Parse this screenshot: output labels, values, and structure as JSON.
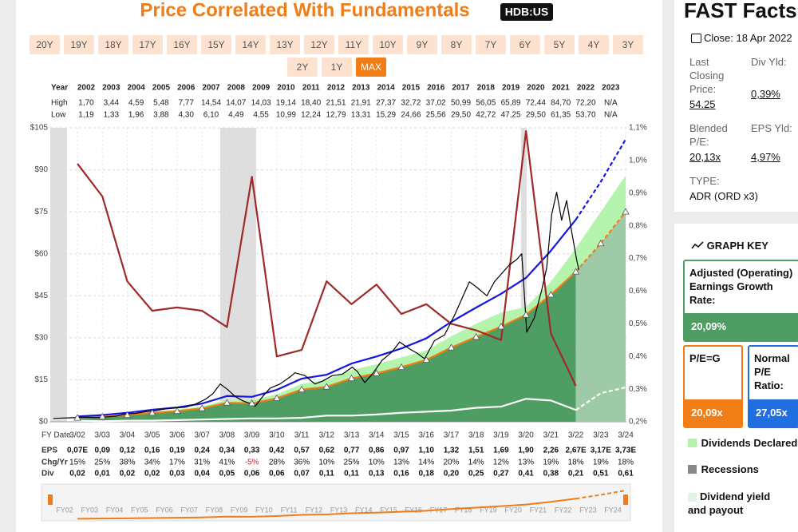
{
  "header": {
    "title": "Price Correlated With Fundamentals",
    "ticker": "HDB:US"
  },
  "periods": [
    "20Y",
    "19Y",
    "18Y",
    "17Y",
    "16Y",
    "15Y",
    "14Y",
    "13Y",
    "12Y",
    "11Y",
    "10Y",
    "9Y",
    "8Y",
    "7Y",
    "6Y",
    "5Y",
    "4Y",
    "3Y",
    "2Y",
    "1Y",
    "MAX"
  ],
  "selected_period": 20,
  "year_table": {
    "labels": [
      "Year",
      "High",
      "Low"
    ],
    "years": [
      "2002",
      "2003",
      "2004",
      "2005",
      "2006",
      "2007",
      "2008",
      "2009",
      "2010",
      "2011",
      "2012",
      "2013",
      "2014",
      "2015",
      "2016",
      "2017",
      "2018",
      "2019",
      "2020",
      "2021",
      "2022",
      "2023"
    ],
    "high": [
      "1,70",
      "3,44",
      "4,59",
      "5,48",
      "7,77",
      "14,54",
      "14,07",
      "14,03",
      "19,14",
      "18,40",
      "21,51",
      "21,91",
      "27,37",
      "32,72",
      "37,02",
      "50,99",
      "56,05",
      "65,89",
      "72,44",
      "84,70",
      "72,20",
      "N/A"
    ],
    "low": [
      "1,19",
      "1,33",
      "1,96",
      "3,88",
      "4,30",
      "6,10",
      "4,49",
      "4,55",
      "10,99",
      "12,24",
      "12,79",
      "13,31",
      "15,29",
      "24,66",
      "25,56",
      "29,50",
      "42,72",
      "47,25",
      "29,50",
      "61,35",
      "53,70",
      "N/A"
    ]
  },
  "chart_data": {
    "type": "line",
    "xlim": [
      2001.08,
      2024.2
    ],
    "xticks": [
      {
        "value": 2002.17,
        "label": "3/02"
      },
      {
        "value": 2003.17,
        "label": "3/03"
      },
      {
        "value": 2004.17,
        "label": "3/04"
      },
      {
        "value": 2005.17,
        "label": "3/05"
      },
      {
        "value": 2006.17,
        "label": "3/06"
      },
      {
        "value": 2007.17,
        "label": "3/07"
      },
      {
        "value": 2008.17,
        "label": "3/08"
      },
      {
        "value": 2009.17,
        "label": "3/09"
      },
      {
        "value": 2010.17,
        "label": "3/10"
      },
      {
        "value": 2011.17,
        "label": "3/11"
      },
      {
        "value": 2012.17,
        "label": "3/12"
      },
      {
        "value": 2013.17,
        "label": "3/13"
      },
      {
        "value": 2014.17,
        "label": "3/14"
      },
      {
        "value": 2015.17,
        "label": "3/15"
      },
      {
        "value": 2016.17,
        "label": "3/16"
      },
      {
        "value": 2017.17,
        "label": "3/17"
      },
      {
        "value": 2018.17,
        "label": "3/18"
      },
      {
        "value": 2019.17,
        "label": "3/19"
      },
      {
        "value": 2020.17,
        "label": "3/20"
      },
      {
        "value": 2021.17,
        "label": "3/21"
      },
      {
        "value": 2022.17,
        "label": "3/22"
      },
      {
        "value": 2023.17,
        "label": "3/23"
      },
      {
        "value": 2024.17,
        "label": "3/24"
      }
    ],
    "ylim": [
      0,
      105
    ],
    "yticks": [
      {
        "value": 0,
        "label": "$0"
      },
      {
        "value": 15,
        "label": "$15"
      },
      {
        "value": 30,
        "label": "$30"
      },
      {
        "value": 45,
        "label": "$45"
      },
      {
        "value": 60,
        "label": "$60"
      },
      {
        "value": 75,
        "label": "$75"
      },
      {
        "value": 90,
        "label": "$90"
      },
      {
        "value": 105,
        "label": "$105"
      }
    ],
    "y2lim": [
      0.2,
      1.1
    ],
    "y2ticks": [
      {
        "value": 0.2,
        "label": "0,2%"
      },
      {
        "value": 0.3,
        "label": "0,3%"
      },
      {
        "value": 0.4,
        "label": "0,4%"
      },
      {
        "value": 0.5,
        "label": "0,5%"
      },
      {
        "value": 0.6,
        "label": "0,6%"
      },
      {
        "value": 0.7,
        "label": "0,7%"
      },
      {
        "value": 0.8,
        "label": "0,8%"
      },
      {
        "value": 0.9,
        "label": "0,9%"
      },
      {
        "value": 1.0,
        "label": "1,0%"
      },
      {
        "value": 1.1,
        "label": "1,1%"
      }
    ],
    "grid": true,
    "recessions": [
      [
        2001.08,
        2001.75
      ],
      [
        2007.9,
        2009.34
      ],
      [
        2019.97,
        2020.2
      ]
    ],
    "x": [
      2002.17,
      2003.17,
      2004.17,
      2005.17,
      2006.17,
      2007.17,
      2008.17,
      2009.17,
      2010.17,
      2011.17,
      2012.17,
      2013.17,
      2014.17,
      2015.17,
      2016.17,
      2017.17,
      2018.17,
      2019.17,
      2020.17,
      2021.17,
      2022.17,
      2023.17,
      2024.17
    ],
    "estimated": [
      false,
      false,
      false,
      false,
      false,
      false,
      false,
      false,
      false,
      false,
      false,
      false,
      false,
      false,
      false,
      false,
      false,
      false,
      false,
      false,
      false,
      true,
      true
    ],
    "series": [
      {
        "color": "#f07d16",
        "fill": "#4e9e64",
        "estimate_fill": "#9fcaa8",
        "markers": "triangle",
        "values": [
          1.4,
          1.8,
          2.4,
          3.2,
          3.8,
          4.8,
          6.8,
          6.6,
          8.4,
          11.5,
          12.5,
          15.5,
          17.3,
          19.5,
          22.1,
          26.5,
          30.3,
          34.0,
          38.2,
          45.4,
          53.6,
          63.7,
          75.0
        ]
      },
      {
        "fill": "#b4f4ad",
        "stacked": true,
        "values": [
          0.1,
          0.2,
          0.3,
          0.4,
          0.5,
          0.7,
          1.0,
          1.2,
          1.4,
          2.0,
          2.5,
          3.0,
          3.2,
          3.5,
          3.4,
          4.0,
          4.7,
          5.0,
          2.8,
          4.6,
          8.4,
          11.3,
          13.0
        ]
      },
      {
        "color": "#1616e0",
        "values": [
          1.9,
          2.4,
          3.2,
          4.3,
          5.1,
          6.5,
          9.2,
          8.9,
          11.4,
          15.4,
          16.8,
          20.8,
          23.3,
          26.2,
          29.8,
          35.7,
          40.8,
          45.7,
          51.4,
          61.1,
          72.2,
          85.7,
          100.9
        ]
      },
      {
        "color": "#ffffff",
        "values": [
          0.4,
          0.2,
          0.4,
          0.4,
          0.6,
          0.8,
          1.0,
          1.2,
          1.2,
          1.4,
          2.2,
          2.2,
          2.6,
          3.2,
          3.6,
          4.0,
          5.0,
          5.4,
          8.2,
          7.6,
          4.2,
          10.2,
          12.3
        ]
      },
      {
        "color": "#9e2a2a",
        "axis": "y2",
        "values": [
          0.99,
          0.89,
          0.63,
          0.54,
          0.55,
          0.54,
          0.49,
          0.95,
          0.4,
          0.42,
          0.63,
          0.56,
          0.62,
          0.53,
          0.56,
          0.5,
          0.48,
          0.45,
          1.09,
          0.47,
          0.31,
          null,
          null
        ]
      },
      {
        "color": "#000000",
        "x": [
          2001.2,
          2001.5,
          2001.8,
          2002.1,
          2002.5,
          2002.9,
          2003.3,
          2003.7,
          2004.1,
          2004.5,
          2004.9,
          2005.3,
          2005.7,
          2006.1,
          2006.5,
          2006.9,
          2007.3,
          2007.6,
          2007.9,
          2008.2,
          2008.5,
          2008.8,
          2009.1,
          2009.3,
          2009.6,
          2009.9,
          2010.3,
          2010.7,
          2010.9,
          2011.3,
          2011.7,
          2012.0,
          2012.4,
          2012.8,
          2013.2,
          2013.4,
          2013.7,
          2014.0,
          2014.4,
          2014.8,
          2015.1,
          2015.5,
          2015.8,
          2016.1,
          2016.5,
          2016.9,
          2017.3,
          2017.6,
          2017.9,
          2018.2,
          2018.6,
          2018.9,
          2019.2,
          2019.5,
          2019.8,
          2020.0,
          2020.2,
          2020.5,
          2020.8,
          2021.0,
          2021.2,
          2021.4,
          2021.6,
          2021.8,
          2022.0,
          2022.2,
          2022.29
        ],
        "values": [
          1.2,
          1.3,
          1.4,
          1.5,
          1.6,
          1.5,
          1.7,
          2.0,
          2.8,
          3.0,
          3.6,
          4.0,
          4.6,
          5.0,
          5.2,
          6.3,
          8.0,
          10.0,
          13.5,
          11.5,
          9.0,
          7.5,
          6.5,
          5.5,
          9.0,
          12.0,
          13.5,
          16.0,
          17.5,
          16.5,
          13.5,
          14.5,
          16.5,
          17.0,
          19.5,
          18.0,
          14.0,
          17.0,
          22.0,
          25.0,
          28.5,
          26.0,
          24.5,
          22.5,
          29.0,
          31.0,
          38.0,
          44.0,
          50.0,
          48.0,
          45.0,
          50.0,
          53.0,
          56.0,
          58.0,
          60.0,
          32.0,
          37.0,
          47.0,
          55.0,
          74.0,
          82.0,
          72.0,
          79.0,
          68.0,
          58.0,
          54.25
        ]
      }
    ]
  },
  "fy_table": {
    "labels": [
      "FY Date",
      "EPS",
      "Chg/Yr",
      "Div"
    ],
    "eps": [
      "0,07E",
      "0,09",
      "0,12",
      "0,16",
      "0,19",
      "0,24",
      "0,34",
      "0,33",
      "0,42",
      "0,57",
      "0,62",
      "0,77",
      "0,86",
      "0,97",
      "1,10",
      "1,32",
      "1,51",
      "1,69",
      "1,90",
      "2,26",
      "2,67E",
      "3,17E",
      "3,73E"
    ],
    "chg": [
      "15%",
      "25%",
      "38%",
      "34%",
      "17%",
      "31%",
      "41%",
      "-5%",
      "28%",
      "36%",
      "10%",
      "25%",
      "10%",
      "13%",
      "14%",
      "20%",
      "14%",
      "12%",
      "13%",
      "19%",
      "18%",
      "19%",
      "18%"
    ],
    "div": [
      "0,02",
      "0,01",
      "0,02",
      "0,02",
      "0,03",
      "0,04",
      "0,05",
      "0,06",
      "0,06",
      "0,07",
      "0,11",
      "0,11",
      "0,13",
      "0,16",
      "0,18",
      "0,20",
      "0,25",
      "0,27",
      "0,41",
      "0,38",
      "0,21",
      "0,51",
      "0,61"
    ]
  },
  "navigator": {
    "labels": [
      "FY02",
      "FY03",
      "FY04",
      "FY05",
      "FY06",
      "FY07",
      "FY08",
      "FY09",
      "FY10",
      "FY11",
      "FY12",
      "FY13",
      "FY14",
      "FY15",
      "FY16",
      "FY17",
      "FY18",
      "FY19",
      "FY20",
      "FY21",
      "FY22",
      "FY23",
      "FY24"
    ]
  },
  "facts": {
    "title": "FAST Facts",
    "close": "Close: 18 Apr 2022",
    "items": [
      {
        "label": "Last Closing Price:",
        "value": "54.25"
      },
      {
        "label": "Div Yld:",
        "value": "0,39%"
      },
      {
        "label": "Blended P/E:",
        "value": "20,13x"
      },
      {
        "label": "EPS Yld:",
        "value": "4,97%"
      }
    ],
    "type_label": "TYPE:",
    "type_value": "ADR (ORD x3)"
  },
  "graph_key": {
    "title": "GRAPH KEY",
    "boxes": [
      {
        "label": "Adjusted (Operating) Earnings Growth Rate:",
        "value": "20,09%"
      },
      {
        "label": "P/E=G",
        "value": "20,09x"
      },
      {
        "label": "Normal P/E Ratio:",
        "value": "27,05x"
      }
    ],
    "items": [
      "Dividends Declared",
      "Recessions",
      "Dividend yield and payout"
    ]
  }
}
